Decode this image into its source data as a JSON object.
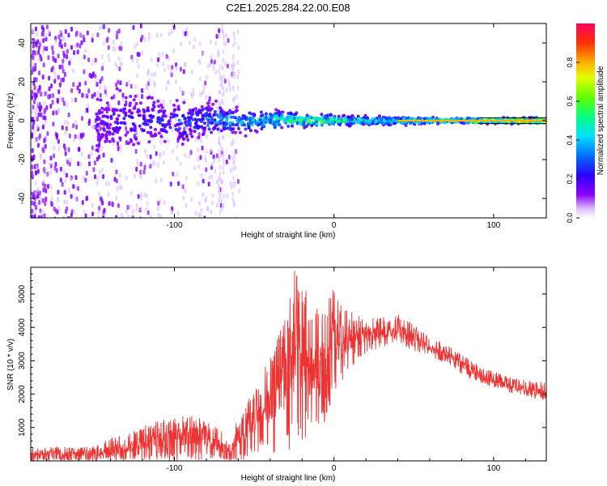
{
  "title": "C2E1.2025.284.22.00.E08",
  "chart_data": [
    {
      "type": "heatmap",
      "name": "spectrogram",
      "xlabel": "Height of straight line (km)",
      "ylabel": "Frequency (Hz)",
      "xlim": [
        -190,
        133
      ],
      "ylim": [
        -50,
        50
      ],
      "xticks": [
        -100,
        0,
        100
      ],
      "xtick_labels": [
        "-100",
        "0",
        "100"
      ],
      "yticks": [
        40,
        20,
        0,
        -20,
        -40
      ],
      "ytick_labels": [
        "40",
        "20",
        "0",
        "-20",
        "-40"
      ],
      "colorbar": {
        "label": "Normalized spectral amplitude",
        "range": [
          0,
          1
        ],
        "ticks": [
          0.0,
          0.2,
          0.4,
          0.6,
          0.8
        ],
        "tick_labels": [
          "0.0",
          "0.2",
          "0.4",
          "0.6",
          "0.8"
        ],
        "colormap": [
          "#ffffff",
          "#8a00ff",
          "#2a00ff",
          "#0060ff",
          "#00e0ff",
          "#00ff60",
          "#b0ff00",
          "#ffd000",
          "#ff5000",
          "#ff0040"
        ]
      },
      "description_points": [
        {
          "x": -150,
          "spread_hz": 10,
          "amplitude": 0.2
        },
        {
          "x": -100,
          "spread_hz": 7,
          "amplitude": 0.3
        },
        {
          "x": -60,
          "spread_hz": 4,
          "amplitude": 0.45
        },
        {
          "x": -20,
          "spread_hz": 2,
          "amplitude": 0.7
        },
        {
          "x": 20,
          "spread_hz": 1.5,
          "amplitude": 0.55
        },
        {
          "x": 80,
          "spread_hz": 1,
          "amplitude": 0.7
        },
        {
          "x": 130,
          "spread_hz": 1,
          "amplitude": 0.95
        }
      ]
    },
    {
      "type": "line",
      "name": "snr",
      "xlabel": "Height of straight line (km)",
      "ylabel": "SNR (10 * v/v)",
      "xlim": [
        -190,
        133
      ],
      "ylim": [
        0,
        5800
      ],
      "xticks": [
        -100,
        0,
        100
      ],
      "xtick_labels": [
        "-100",
        "0",
        "100"
      ],
      "yticks": [
        1000,
        2000,
        3000,
        4000,
        5000
      ],
      "ytick_labels": [
        "1000",
        "2000",
        "3000",
        "4000",
        "5000"
      ],
      "color": "#ee3333",
      "series": [
        {
          "name": "SNR",
          "x": [
            -190,
            -160,
            -150,
            -140,
            -130,
            -120,
            -110,
            -100,
            -90,
            -80,
            -70,
            -65,
            -60,
            -50,
            -40,
            -30,
            -25,
            -20,
            -15,
            -10,
            -5,
            0,
            10,
            20,
            30,
            40,
            50,
            60,
            70,
            80,
            90,
            100,
            110,
            120,
            133
          ],
          "y": [
            250,
            200,
            260,
            300,
            400,
            550,
            600,
            700,
            800,
            700,
            400,
            200,
            800,
            1300,
            1800,
            2500,
            3200,
            3000,
            2800,
            2600,
            3000,
            3500,
            3700,
            3800,
            3850,
            3900,
            3700,
            3400,
            3200,
            2900,
            2600,
            2400,
            2250,
            2150,
            2000
          ],
          "envelope_low": [
            0,
            0,
            0,
            0,
            0,
            0,
            0,
            0,
            0,
            0,
            0,
            0,
            0,
            100,
            200,
            300,
            400,
            500,
            700,
            900,
            1200,
            1800,
            2800,
            3200,
            3400,
            3500,
            3300,
            3100,
            2900,
            2600,
            2350,
            2200,
            2050,
            1950,
            1800
          ],
          "envelope_high": [
            450,
            400,
            500,
            700,
            800,
            1050,
            1200,
            1300,
            1400,
            1200,
            900,
            500,
            1400,
            2200,
            3200,
            4300,
            5800,
            5200,
            5100,
            4500,
            5000,
            5200,
            4500,
            4300,
            4300,
            4400,
            4100,
            3700,
            3500,
            3200,
            2900,
            2700,
            2500,
            2450,
            2350
          ]
        }
      ]
    }
  ]
}
